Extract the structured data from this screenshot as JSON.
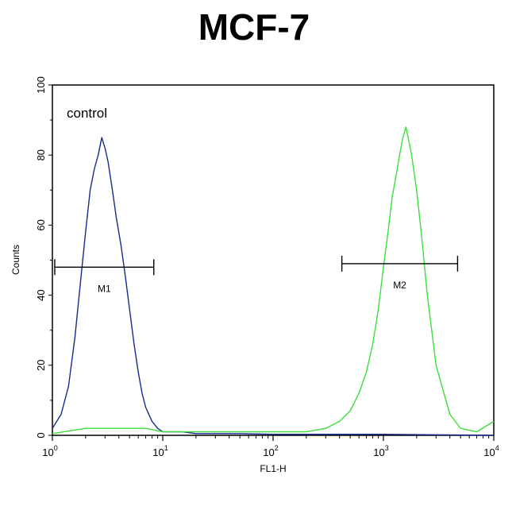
{
  "chart_data": {
    "type": "line",
    "title": "MCF-7",
    "xlabel": "FL1-H",
    "ylabel": "Counts",
    "x_scale": "log",
    "xlim": [
      1,
      10000
    ],
    "ylim": [
      0,
      100
    ],
    "x_ticks": [
      {
        "value": 1,
        "base": "10",
        "exp": "0"
      },
      {
        "value": 10,
        "base": "10",
        "exp": "1"
      },
      {
        "value": 100,
        "base": "10",
        "exp": "2"
      },
      {
        "value": 1000,
        "base": "10",
        "exp": "3"
      },
      {
        "value": 10000,
        "base": "10",
        "exp": "4"
      }
    ],
    "y_ticks": [
      "0",
      "20",
      "40",
      "60",
      "80",
      "100"
    ],
    "grid": false,
    "annotation": "control",
    "series": [
      {
        "color": "#1a2a8c",
        "x": [
          1.0,
          1.2,
          1.4,
          1.6,
          1.8,
          2.0,
          2.2,
          2.4,
          2.6,
          2.8,
          3.0,
          3.2,
          3.5,
          3.8,
          4.2,
          4.6,
          5.0,
          5.5,
          6.0,
          6.5,
          7.0,
          8.0,
          9.0,
          10,
          15,
          20,
          50,
          100,
          1000,
          10000
        ],
        "y": [
          2,
          6,
          14,
          28,
          44,
          58,
          70,
          76,
          80,
          85,
          82,
          78,
          70,
          62,
          54,
          45,
          36,
          26,
          18,
          12,
          8,
          4,
          2,
          1,
          1,
          0.5,
          0.5,
          0.3,
          0.3,
          0
        ]
      },
      {
        "color": "#3adf3a",
        "x": [
          1.0,
          2,
          4,
          7,
          10,
          30,
          100,
          200,
          300,
          400,
          500,
          600,
          700,
          800,
          900,
          1000,
          1100,
          1200,
          1300,
          1400,
          1500,
          1600,
          1700,
          1800,
          2000,
          2200,
          2500,
          3000,
          4000,
          5000,
          7000,
          10000
        ],
        "y": [
          0.5,
          2,
          2,
          2,
          1,
          1,
          1,
          1,
          2,
          4,
          7,
          12,
          18,
          26,
          36,
          48,
          58,
          68,
          74,
          80,
          85,
          88,
          84,
          80,
          70,
          58,
          40,
          20,
          6,
          2,
          1,
          4
        ]
      }
    ],
    "markers": [
      {
        "label": "M1",
        "x_start": 1.05,
        "x_end": 8.3,
        "y": 48
      },
      {
        "label": "M2",
        "x_start": 420,
        "x_end": 4700,
        "y": 49
      }
    ]
  }
}
